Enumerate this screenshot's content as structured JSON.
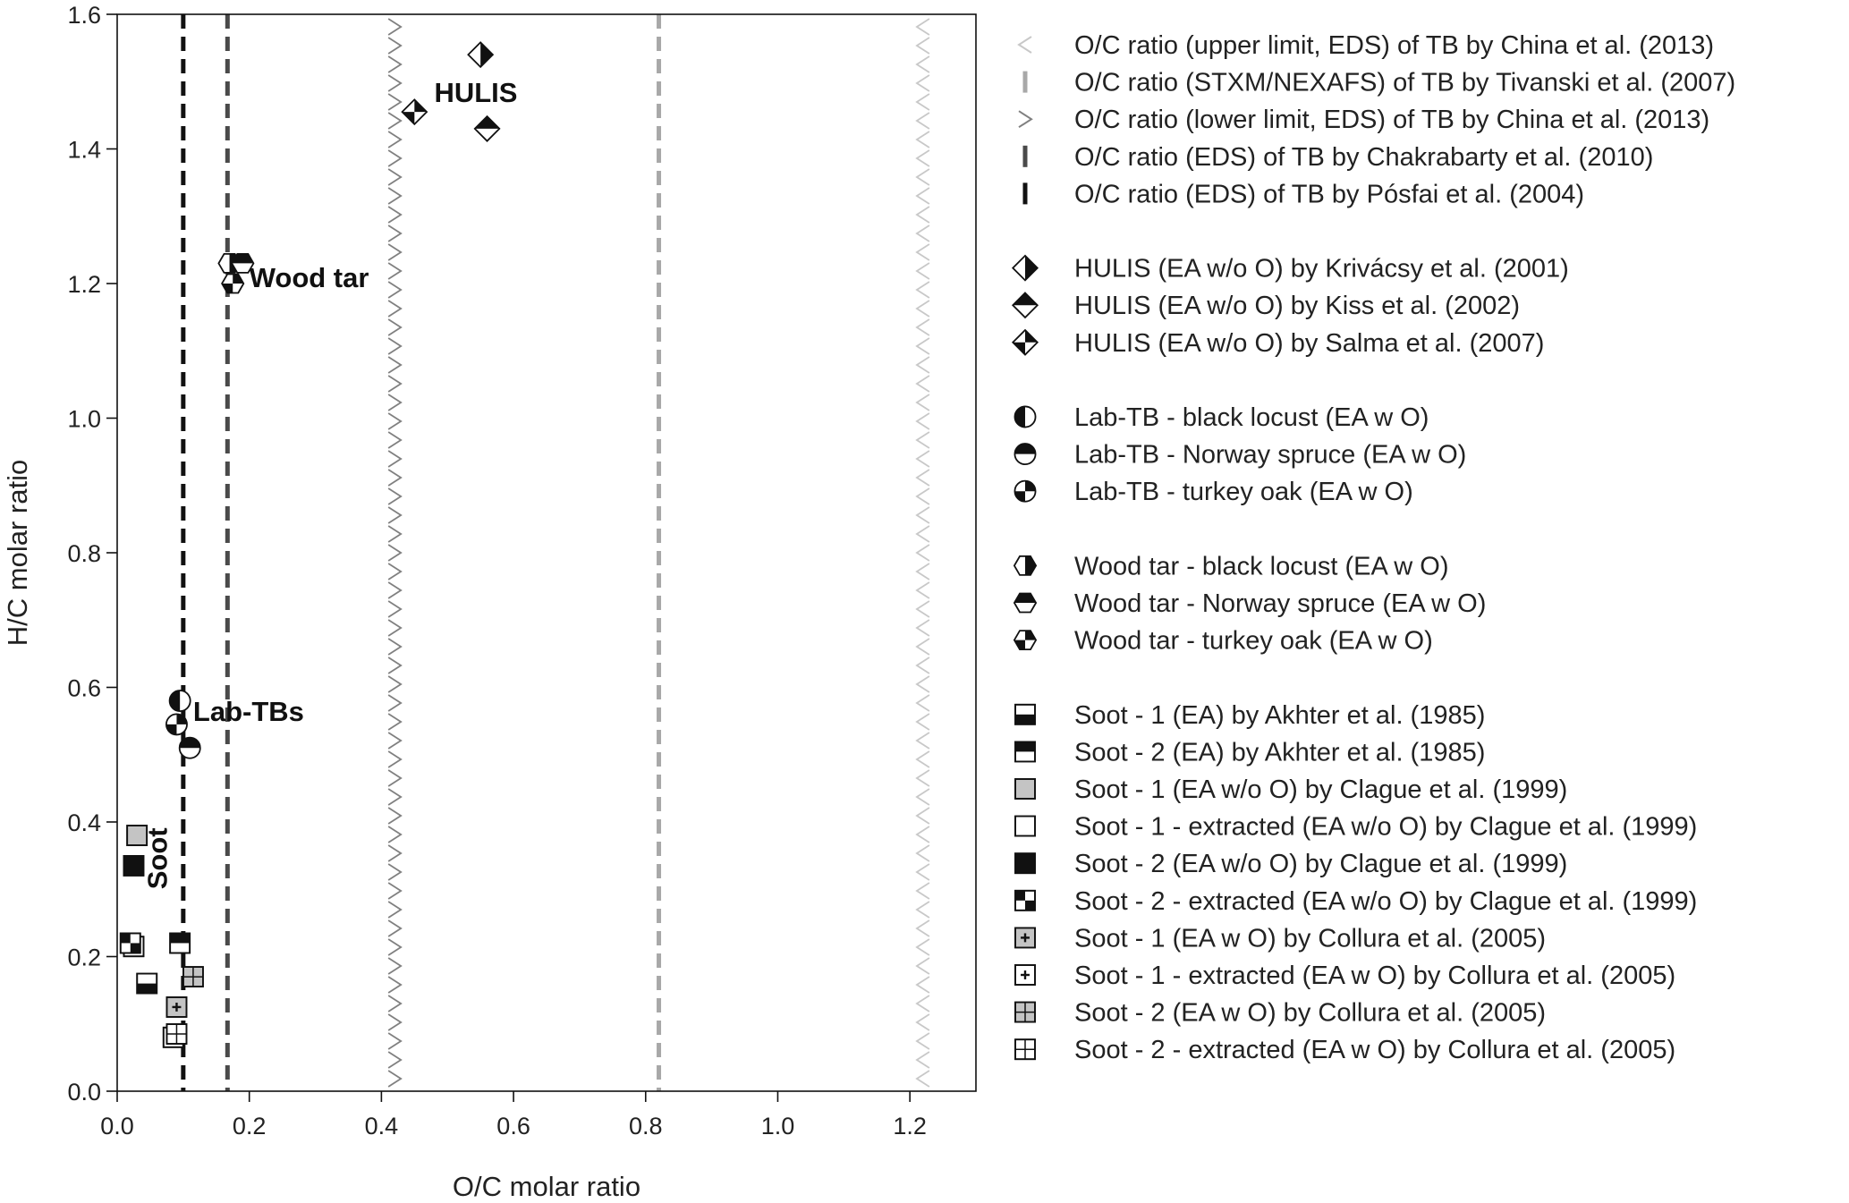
{
  "chart_data": {
    "type": "scatter",
    "xlabel": "O/C molar ratio",
    "ylabel": "H/C molar ratio",
    "xlim": [
      0.0,
      1.3
    ],
    "ylim": [
      0.0,
      1.6
    ],
    "xticks": [
      0.0,
      0.2,
      0.4,
      0.6,
      0.8,
      1.0,
      1.2
    ],
    "yticks": [
      0.0,
      0.2,
      0.4,
      0.6,
      0.8,
      1.0,
      1.2,
      1.4,
      1.6
    ],
    "xtick_labels": [
      "0.0",
      "0.2",
      "0.4",
      "0.6",
      "0.8",
      "1.0",
      "1.2"
    ],
    "ytick_labels": [
      "0.0",
      "0.2",
      "0.4",
      "0.6",
      "0.8",
      "1.0",
      "1.2",
      "1.4",
      "1.6"
    ],
    "grid": false,
    "legend_position": "right",
    "vertical_lines": [
      {
        "name": "O/C ratio (upper limit, EDS) of TB by China et al. (2013)",
        "x": 1.22,
        "style": "chevron-left",
        "color": "#c8c8c8"
      },
      {
        "name": "O/C ratio (STXM/NEXAFS) of TB by Tivanski et al. (2007)",
        "x": 0.82,
        "style": "dashed",
        "color": "#a8a8a8"
      },
      {
        "name": "O/C ratio (lower limit, EDS) of TB by China et al. (2013)",
        "x": 0.42,
        "style": "chevron-right",
        "color": "#808080"
      },
      {
        "name": "O/C ratio (EDS) of TB by Chakrabarty et al. (2010)",
        "x": 0.167,
        "style": "dashed",
        "color": "#4a4a4a"
      },
      {
        "name": "O/C ratio (EDS) of TB by Pósfai et al. (2004)",
        "x": 0.1,
        "style": "dashed",
        "color": "#111111"
      }
    ],
    "series": [
      {
        "name": "HULIS (EA w/o O) by Krivácsy et al. (2001)",
        "marker": "diamond-half-right",
        "x": [
          0.55
        ],
        "y": [
          1.54
        ]
      },
      {
        "name": "HULIS (EA w/o O) by Kiss et al. (2002)",
        "marker": "diamond-half-top",
        "x": [
          0.56
        ],
        "y": [
          1.43
        ]
      },
      {
        "name": "HULIS (EA w/o O) by Salma et al. (2007)",
        "marker": "diamond-quarter",
        "x": [
          0.45
        ],
        "y": [
          1.455
        ]
      },
      {
        "name": "Lab-TB - black locust (EA w O)",
        "marker": "circle-half-right",
        "x": [
          0.095
        ],
        "y": [
          0.58
        ]
      },
      {
        "name": "Lab-TB - Norway spruce (EA w O)",
        "marker": "circle-half-top",
        "x": [
          0.11
        ],
        "y": [
          0.51
        ]
      },
      {
        "name": "Lab-TB -  turkey oak (EA w O)",
        "marker": "circle-quarter",
        "x": [
          0.09
        ],
        "y": [
          0.545
        ]
      },
      {
        "name": "Wood tar - black locust (EA w O)",
        "marker": "hexagon-half-right",
        "x": [
          0.17
        ],
        "y": [
          1.23
        ]
      },
      {
        "name": "Wood tar - Norway spruce (EA w O)",
        "marker": "hexagon-half-top",
        "x": [
          0.19
        ],
        "y": [
          1.23
        ]
      },
      {
        "name": "Wood tar -  turkey oak (EA w O)",
        "marker": "hexagon-quarter",
        "x": [
          0.175
        ],
        "y": [
          1.2
        ]
      },
      {
        "name": "Soot - 1 (EA) by Akhter et al. (1985)",
        "marker": "square-bottom-half",
        "x": [
          0.045
        ],
        "y": [
          0.16
        ]
      },
      {
        "name": "Soot - 2 (EA) by Akhter et al. (1985)",
        "marker": "square-top-half",
        "x": [
          0.095
        ],
        "y": [
          0.22
        ]
      },
      {
        "name": "Soot - 1 (EA w/o O) by Clague et al. (1999)",
        "marker": "square-gray",
        "x": [
          0.03
        ],
        "y": [
          0.38
        ]
      },
      {
        "name": "Soot - 1 - extracted (EA w/o O) by Clague et al. (1999)",
        "marker": "square-open",
        "x": [
          0.025
        ],
        "y": [
          0.215
        ]
      },
      {
        "name": "Soot - 2 (EA w/o O) by Clague et al. (1999)",
        "marker": "square-black",
        "x": [
          0.025
        ],
        "y": [
          0.335
        ]
      },
      {
        "name": "Soot - 2 - extracted (EA w/o O) by Clague et al. (1999)",
        "marker": "square-checker",
        "x": [
          0.02
        ],
        "y": [
          0.22
        ]
      },
      {
        "name": "Soot - 1 (EA w O) by Collura et al. (2005)",
        "marker": "square-gray-plus",
        "x": [
          0.09
        ],
        "y": [
          0.125
        ]
      },
      {
        "name": "Soot - 1 - extracted (EA w O) by Collura et al. (2005)",
        "marker": "square-open-plus",
        "x": [
          0.085
        ],
        "y": [
          0.08
        ]
      },
      {
        "name": "Soot - 2 (EA w O) by Collura et al. (2005)",
        "marker": "square-gray-grid",
        "x": [
          0.115
        ],
        "y": [
          0.17
        ]
      },
      {
        "name": "Soot - 2 - extracted (EA w O) by Collura et al. (2005)",
        "marker": "square-open-grid",
        "x": [
          0.09
        ],
        "y": [
          0.085
        ]
      }
    ],
    "legend_groups": [
      5,
      3,
      3,
      3,
      10
    ],
    "annotations": [
      {
        "text": "HULIS",
        "x": 0.48,
        "y": 1.47,
        "rotate": false
      },
      {
        "text": "Wood tar",
        "x": 0.2,
        "y": 1.195,
        "rotate": false
      },
      {
        "text": "Lab-TBs",
        "x": 0.115,
        "y": 0.55,
        "rotate": false
      },
      {
        "text": "Soot",
        "x": 0.075,
        "y": 0.3,
        "rotate": true
      }
    ]
  }
}
